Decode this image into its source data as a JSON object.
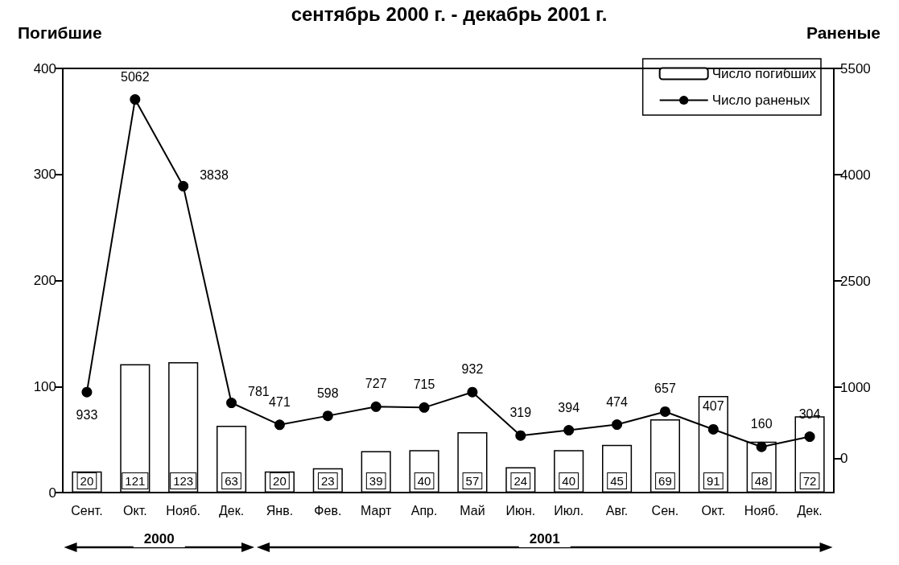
{
  "chart_data": {
    "type": "bar",
    "title": "сентябрь 2000 г. - декабрь 2001 г.",
    "ylabel": "Погибшие",
    "y2label": "Раненые",
    "categories": [
      "Сент.",
      "Окт.",
      "Нояб.",
      "Дек.",
      "Янв.",
      "Фев.",
      "Март",
      "Апр.",
      "Май",
      "Июн.",
      "Июл.",
      "Авг.",
      "Сен.",
      "Окт.",
      "Нояб.",
      "Дек."
    ],
    "series": [
      {
        "name": "Число погибших",
        "color": "#ffffff",
        "values": [
          20,
          121,
          123,
          63,
          20,
          23,
          39,
          40,
          57,
          24,
          40,
          45,
          69,
          91,
          48,
          72
        ]
      },
      {
        "name": "Число раненых",
        "type": "line",
        "axis": "y2",
        "color": "#000000",
        "values": [
          933,
          5062,
          3838,
          781,
          471,
          598,
          727,
          715,
          932,
          319,
          394,
          474,
          657,
          407,
          160,
          304
        ]
      }
    ],
    "ylim": [
      0,
      400
    ],
    "yticks": [
      0,
      100,
      200,
      300,
      400
    ],
    "y2lim": [
      -485,
      5500
    ],
    "y2ticks": [
      0,
      1000,
      2500,
      4000,
      5500
    ],
    "annotations": [
      "2000",
      "2001"
    ],
    "data_labels": true,
    "legend": "top right",
    "marker": "circle",
    "line_style": "solid",
    "grid": false
  }
}
